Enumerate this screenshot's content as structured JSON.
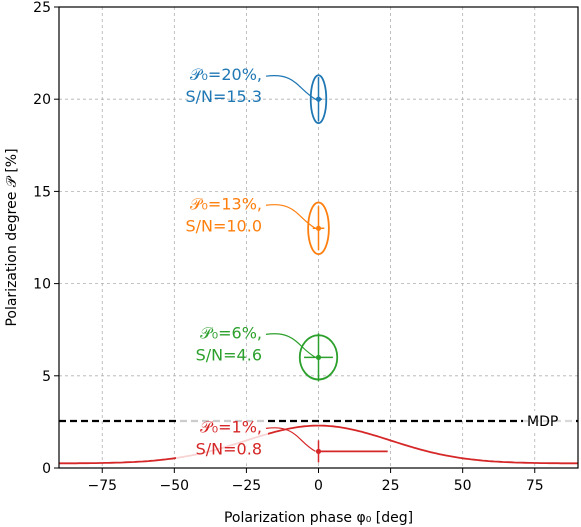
{
  "chart_data": {
    "type": "scatter",
    "title": "",
    "xlabel": "Polarization phase φ₀ [deg]",
    "ylabel": "Polarization degree 𝒫 [%]",
    "xlim": [
      -90,
      90
    ],
    "ylim": [
      0,
      25
    ],
    "xticks": [
      -75,
      -50,
      -25,
      0,
      25,
      50,
      75
    ],
    "xtick_labels": [
      "−75",
      "−50",
      "−25",
      "0",
      "25",
      "50",
      "75"
    ],
    "yticks": [
      0,
      5,
      10,
      15,
      20,
      25
    ],
    "ytick_labels": [
      "0",
      "5",
      "10",
      "15",
      "20",
      "25"
    ],
    "grid": true,
    "mdp": {
      "value": 2.55,
      "label": "MDP"
    },
    "series": [
      {
        "p0": 20,
        "label_line1": "𝒫₀=20%,",
        "label_line2": "S/N=15.3",
        "color": "#1f77b4",
        "x": 0,
        "y": 20,
        "xerr": 1.3,
        "yerr": 1.2,
        "ellipse_dx": 2.7,
        "ellipse_dy": 1.3
      },
      {
        "p0": 13,
        "label_line1": "𝒫₀=13%,",
        "label_line2": "S/N=10.0",
        "color": "#ff7f0e",
        "x": 0,
        "y": 13,
        "xerr": 2.0,
        "yerr": 1.2,
        "ellipse_dx": 3.6,
        "ellipse_dy": 1.4
      },
      {
        "p0": 6,
        "label_line1": "𝒫₀=6%,",
        "label_line2": "S/N=4.6",
        "color": "#2ca02c",
        "x": 0,
        "y": 6,
        "xerr": 5.0,
        "yerr": 1.3,
        "ellipse_dx": 6.5,
        "ellipse_dy": 1.2
      },
      {
        "p0": 1,
        "label_line1": "𝒫₀=1%,",
        "label_line2": "S/N=0.8",
        "color": "#d62728",
        "x": 0,
        "y": 0.9,
        "xerr_low": 0,
        "xerr_high": 24,
        "yerr": 0.6,
        "curve_peak": 2.3,
        "curve_floor": 0.25,
        "curve_sigma": 25
      }
    ]
  }
}
